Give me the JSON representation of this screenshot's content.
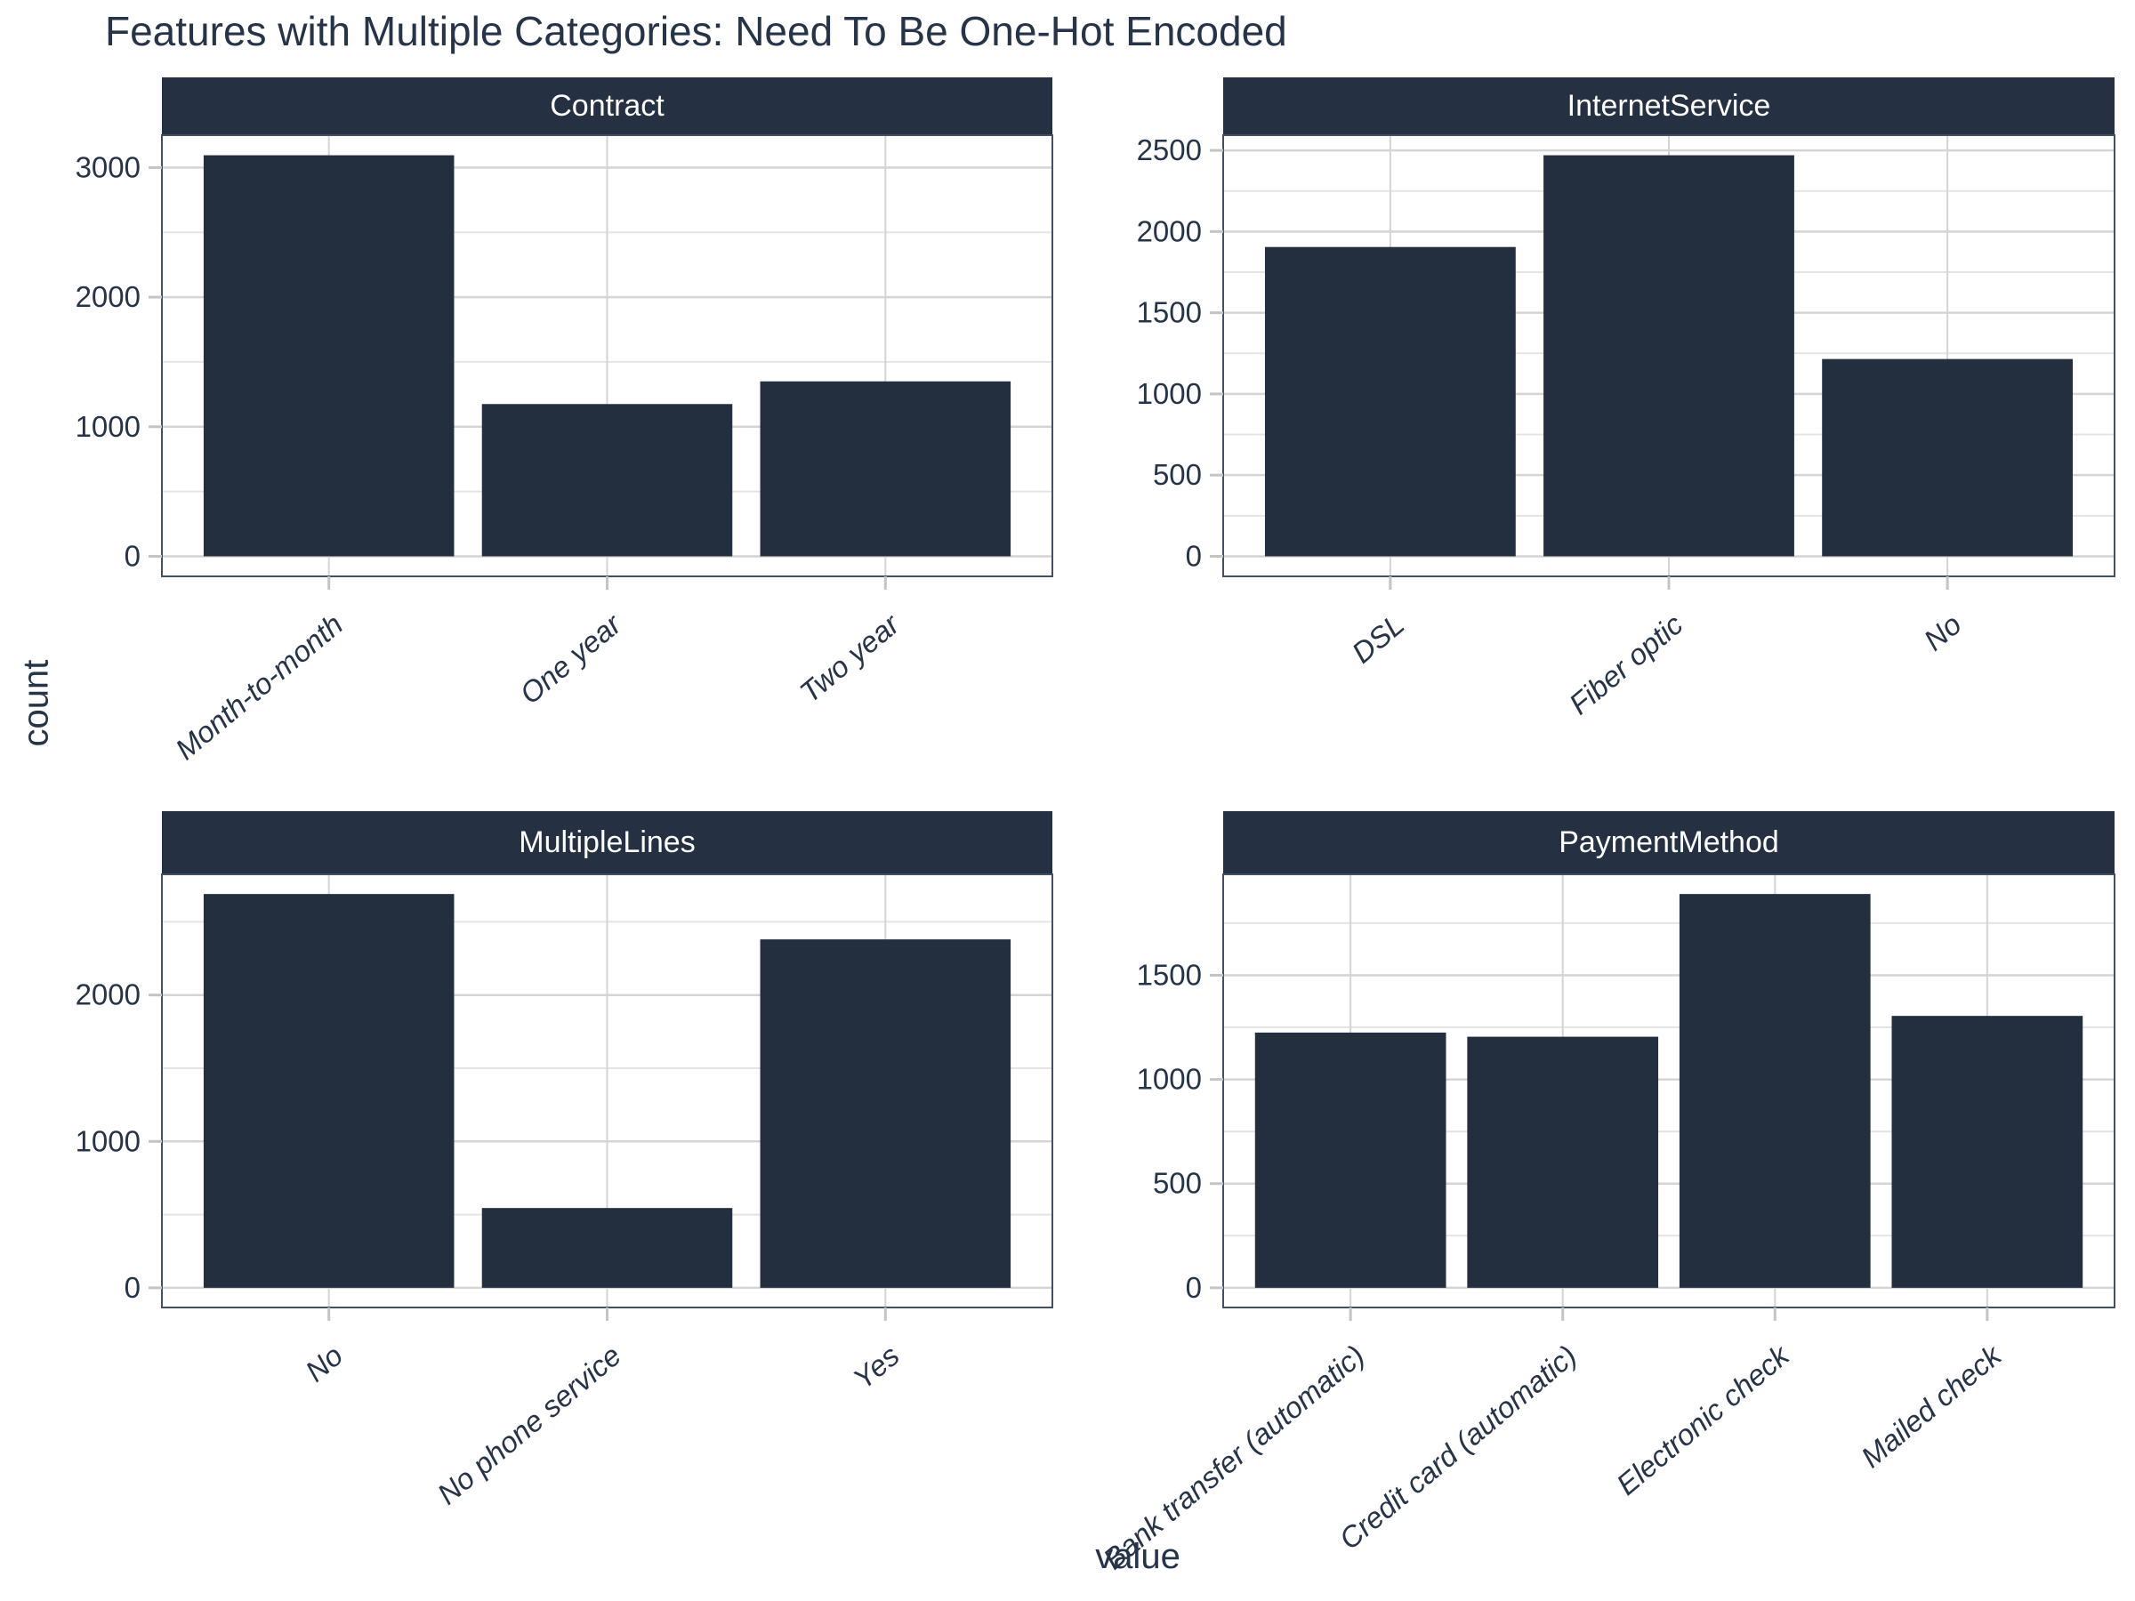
{
  "title": "Features with Multiple Categories: Need To Be One-Hot Encoded",
  "axes": {
    "x_label": "value",
    "y_label": "count"
  },
  "colors": {
    "bar": "#232F3E",
    "strip_bg": "#253142",
    "strip_text": "#FFFFFF",
    "text": "#263449",
    "grid_major": "#D4D4D4",
    "grid_minor": "#E4E4E4",
    "panel_border": "#415063",
    "tick_mark": "#C4C4C4",
    "background": "#FFFFFF"
  },
  "chart_data": [
    {
      "type": "bar",
      "title": "Contract",
      "categories": [
        "Month-to-month",
        "One year",
        "Two year"
      ],
      "values": [
        3095,
        1175,
        1350
      ],
      "xlabel": "value",
      "ylabel": "count",
      "ylim": [
        0,
        3250
      ],
      "yticks_major": [
        0,
        1000,
        2000,
        3000
      ],
      "yticks_minor": [
        500,
        1500,
        2500
      ],
      "grid": true,
      "legend": false
    },
    {
      "type": "bar",
      "title": "InternetService",
      "categories": [
        "DSL",
        "Fiber optic",
        "No"
      ],
      "values": [
        1905,
        2470,
        1215
      ],
      "xlabel": "value",
      "ylabel": "count",
      "ylim": [
        0,
        2595
      ],
      "yticks_major": [
        0,
        500,
        1000,
        1500,
        2000,
        2500
      ],
      "yticks_minor": [
        250,
        750,
        1250,
        1750,
        2250
      ],
      "grid": true,
      "legend": false
    },
    {
      "type": "bar",
      "title": "MultipleLines",
      "categories": [
        "No",
        "No phone service",
        "Yes"
      ],
      "values": [
        2690,
        545,
        2380
      ],
      "xlabel": "value",
      "ylabel": "count",
      "ylim": [
        0,
        2825
      ],
      "yticks_major": [
        0,
        1000,
        2000
      ],
      "yticks_minor": [
        500,
        1500,
        2500
      ],
      "grid": true,
      "legend": false
    },
    {
      "type": "bar",
      "title": "PaymentMethod",
      "categories": [
        "Bank transfer (automatic)",
        "Credit card (automatic)",
        "Electronic check",
        "Mailed check"
      ],
      "values": [
        1225,
        1205,
        1890,
        1305
      ],
      "xlabel": "value",
      "ylabel": "count",
      "ylim": [
        0,
        1985
      ],
      "yticks_major": [
        0,
        500,
        1000,
        1500
      ],
      "yticks_minor": [
        250,
        750,
        1250,
        1750
      ],
      "grid": true,
      "legend": false
    }
  ]
}
